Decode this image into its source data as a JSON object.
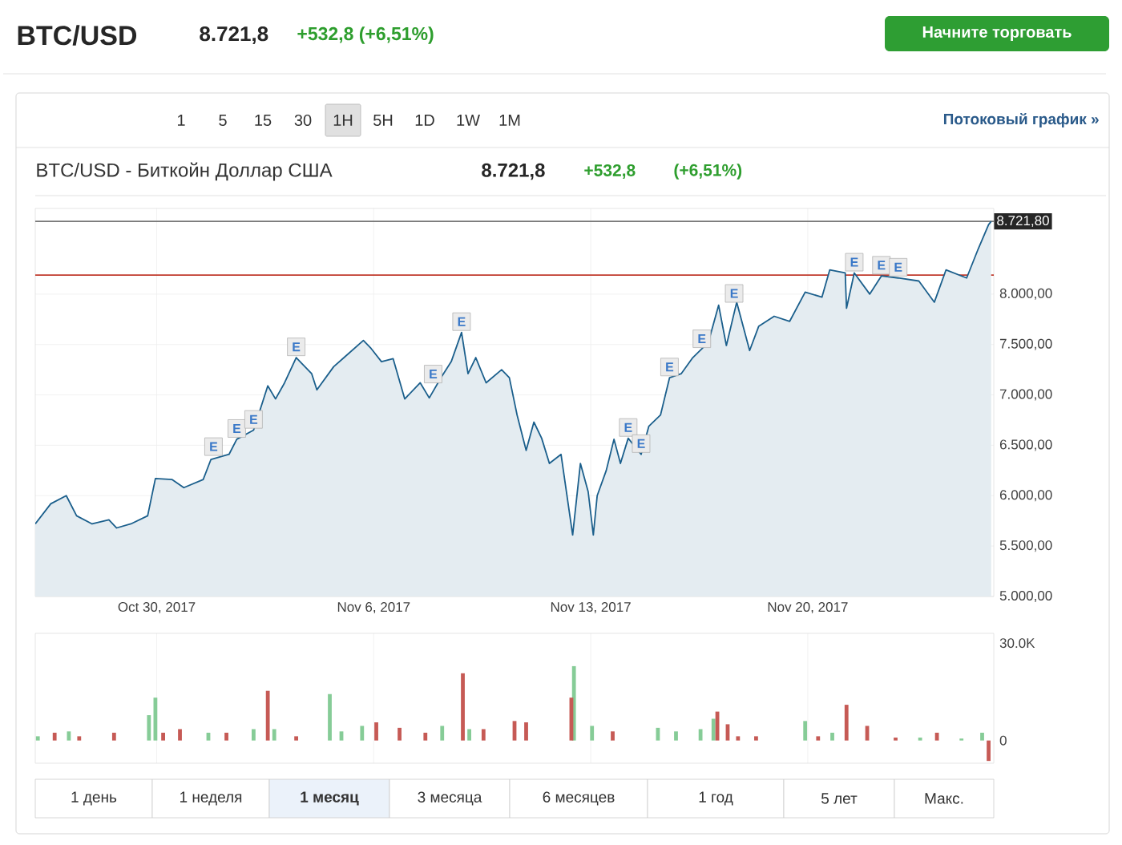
{
  "chart_data": [
    {
      "type": "area",
      "title": "BTC/USD - Биткойн Доллар США",
      "xlim": [
        "2017-10-26T02:00",
        "2017-11-26T00:00"
      ],
      "ylim": [
        5000,
        8850
      ],
      "xticks": [
        {
          "value": "2017-10-30",
          "label": "Oct 30, 2017"
        },
        {
          "value": "2017-11-06",
          "label": "Nov 6, 2017"
        },
        {
          "value": "2017-11-13",
          "label": "Nov 13, 2017"
        },
        {
          "value": "2017-11-20",
          "label": "Nov 20, 2017"
        }
      ],
      "yticks": [
        {
          "value": 5000,
          "label": "5.000,00"
        },
        {
          "value": 5500,
          "label": "5.500,00"
        },
        {
          "value": 6000,
          "label": "6.000,00"
        },
        {
          "value": 6500,
          "label": "6.500,00"
        },
        {
          "value": 7000,
          "label": "7.000,00"
        },
        {
          "value": 7500,
          "label": "7.500,00"
        },
        {
          "value": 8000,
          "label": "8.000,00"
        }
      ],
      "grid": true,
      "ref_lines": [
        {
          "axis": "y",
          "value": 8721.8,
          "label": "8.721,80",
          "color": "#777777"
        },
        {
          "axis": "y",
          "value": 8189,
          "color": "#c0392b"
        }
      ],
      "series": [
        {
          "color": "#1b5f8c",
          "x": [
            "2017-10-26T02:00",
            "2017-10-26T14:00",
            "2017-10-27T02:00",
            "2017-10-27T10:00",
            "2017-10-27T22:00",
            "2017-10-28T11:00",
            "2017-10-28T17:00",
            "2017-10-29T04:00",
            "2017-10-29T17:00",
            "2017-10-29T23:00",
            "2017-10-30T12:00",
            "2017-10-30T21:00",
            "2017-10-31T12:00",
            "2017-10-31T18:00",
            "2017-11-01T08:00",
            "2017-11-01T14:00",
            "2017-11-02T03:00",
            "2017-11-02T14:00",
            "2017-11-02T20:00",
            "2017-11-03T03:00",
            "2017-11-03T12:00",
            "2017-11-04T00:00",
            "2017-11-04T04:00",
            "2017-11-04T17:00",
            "2017-11-05T01:00",
            "2017-11-05T16:00",
            "2017-11-05T22:00",
            "2017-11-06T06:00",
            "2017-11-06T15:00",
            "2017-11-07T00:00",
            "2017-11-07T12:00",
            "2017-11-07T19:00",
            "2017-11-08T04:00",
            "2017-11-08T12:00",
            "2017-11-08T20:00",
            "2017-11-09T01:00",
            "2017-11-09T07:00",
            "2017-11-09T15:00",
            "2017-11-10T03:00",
            "2017-11-10T09:00",
            "2017-11-10T15:00",
            "2017-11-10T22:00",
            "2017-11-11T04:00",
            "2017-11-11T10:00",
            "2017-11-11T16:00",
            "2017-11-12T01:00",
            "2017-11-12T10:00",
            "2017-11-12T16:00",
            "2017-11-12T22:00",
            "2017-11-13T02:00",
            "2017-11-13T05:00",
            "2017-11-13T12:00",
            "2017-11-13T18:00",
            "2017-11-13T23:00",
            "2017-11-14T05:00",
            "2017-11-14T15:00",
            "2017-11-14T21:00",
            "2017-11-15T06:00",
            "2017-11-15T13:00",
            "2017-11-15T22:00",
            "2017-11-16T07:00",
            "2017-11-16T19:00",
            "2017-11-17T03:00",
            "2017-11-17T09:00",
            "2017-11-17T17:00",
            "2017-11-18T03:00",
            "2017-11-18T10:00",
            "2017-11-18T22:00",
            "2017-11-19T10:00",
            "2017-11-19T22:00",
            "2017-11-20T11:00",
            "2017-11-20T17:00",
            "2017-11-21T05:00",
            "2017-11-21T06:00",
            "2017-11-21T12:00",
            "2017-11-22T00:00",
            "2017-11-22T09:00",
            "2017-11-22T22:00",
            "2017-11-23T14:00",
            "2017-11-24T02:00",
            "2017-11-24T11:00",
            "2017-11-25T03:00",
            "2017-11-25T12:00",
            "2017-11-25T20:00",
            "2017-11-25T22:00"
          ],
          "values": [
            5720,
            5920,
            6000,
            5800,
            5720,
            5760,
            5680,
            5720,
            5800,
            6170,
            6160,
            6080,
            6160,
            6360,
            6410,
            6560,
            6650,
            7090,
            6960,
            7120,
            7370,
            7210,
            7050,
            7280,
            7370,
            7540,
            7460,
            7330,
            7360,
            6960,
            7120,
            6970,
            7170,
            7330,
            7620,
            7210,
            7370,
            7120,
            7250,
            7170,
            6800,
            6450,
            6730,
            6570,
            6320,
            6410,
            5610,
            6320,
            6040,
            5610,
            6000,
            6250,
            6560,
            6320,
            6570,
            6410,
            6690,
            6800,
            7170,
            7210,
            7370,
            7520,
            7890,
            7490,
            7920,
            7440,
            7680,
            7780,
            7730,
            8020,
            7970,
            8240,
            8210,
            7860,
            8210,
            8000,
            8180,
            8160,
            8130,
            7920,
            8240,
            8160,
            8450,
            8690,
            8721.8
          ]
        }
      ],
      "annotations": [
        "BTC/USD",
        "8.721,8",
        "+532,8 (+6,51%)",
        "Начните торговать",
        "1",
        "5",
        "15",
        "30",
        "1H",
        "5H",
        "1D",
        "1W",
        "1M",
        "Потоковый график »",
        "8.721,8",
        "+532,8",
        "(+6,51%)",
        "1 день",
        "1 неделя",
        "1 месяц",
        "3 месяца",
        "6 месяцев",
        "1 год",
        "5 лет",
        "Макс.",
        {
          "text": "E",
          "x": "2017-10-31T20:00",
          "y": 6380
        },
        {
          "text": "E",
          "x": "2017-11-01T14:00",
          "y": 6560
        },
        {
          "text": "E",
          "x": "2017-11-02T03:00",
          "y": 6650
        },
        {
          "text": "E",
          "x": "2017-11-03T12:00",
          "y": 7370
        },
        {
          "text": "E",
          "x": "2017-11-07T22:00",
          "y": 7100
        },
        {
          "text": "E",
          "x": "2017-11-08T20:00",
          "y": 7620
        },
        {
          "text": "E",
          "x": "2017-11-14T05:00",
          "y": 6570
        },
        {
          "text": "E",
          "x": "2017-11-14T15:00",
          "y": 6410
        },
        {
          "text": "E",
          "x": "2017-11-15T13:00",
          "y": 7170
        },
        {
          "text": "E",
          "x": "2017-11-16T14:00",
          "y": 7450
        },
        {
          "text": "E",
          "x": "2017-11-17T15:00",
          "y": 7900
        },
        {
          "text": "E",
          "x": "2017-11-21T12:00",
          "y": 8210
        },
        {
          "text": "E",
          "x": "2017-11-22T09:00",
          "y": 8180
        },
        {
          "text": "E",
          "x": "2017-11-22T22:00",
          "y": 8160
        }
      ]
    },
    {
      "type": "bar",
      "xlim": [
        "2017-10-26T02:00",
        "2017-11-26T00:00"
      ],
      "ylim": [
        -7000,
        33000
      ],
      "xticks": [
        {
          "value": "2017-10-30",
          "label": null
        },
        {
          "value": "2017-11-06",
          "label": null
        },
        {
          "value": "2017-11-13",
          "label": null
        },
        {
          "value": "2017-11-20",
          "label": null
        }
      ],
      "yticks": [
        0,
        {
          "value": 30000,
          "label": "30.0K"
        }
      ],
      "tick_labels": "y",
      "grid": "x",
      "series": [
        {
          "color": "#86cc97",
          "x": [
            "2017-10-26T04:00",
            "2017-10-27T04:00",
            "2017-10-29T18:00",
            "2017-10-29T23:00",
            "2017-10-31T16:00",
            "2017-11-02T03:00",
            "2017-11-02T19:00",
            "2017-11-04T14:00",
            "2017-11-04T23:00",
            "2017-11-05T15:00",
            "2017-11-08T05:00",
            "2017-11-09T02:00",
            "2017-11-12T11:00",
            "2017-11-13T01:00",
            "2017-11-15T04:00",
            "2017-11-15T18:00",
            "2017-11-16T13:00",
            "2017-11-16T23:00",
            "2017-11-19T22:00",
            "2017-11-20T19:00",
            "2017-11-23T15:00",
            "2017-11-24T23:00",
            "2017-11-25T15:00"
          ],
          "values": [
            1300,
            2800,
            7800,
            13200,
            2400,
            3500,
            3500,
            14300,
            2800,
            4500,
            4500,
            3500,
            22900,
            4500,
            3900,
            2800,
            3500,
            6700,
            6000,
            2400,
            900,
            600,
            2400
          ]
        },
        {
          "color": "#c65a55",
          "x": [
            "2017-10-26T17:00",
            "2017-10-27T12:00",
            "2017-10-28T15:00",
            "2017-10-30T05:00",
            "2017-10-30T18:00",
            "2017-11-01T06:00",
            "2017-11-02T14:00",
            "2017-11-03T12:00",
            "2017-11-06T02:00",
            "2017-11-06T20:00",
            "2017-11-07T16:00",
            "2017-11-08T21:00",
            "2017-11-09T13:00",
            "2017-11-10T13:00",
            "2017-11-10T22:00",
            "2017-11-12T09:00",
            "2017-11-13T17:00",
            "2017-11-17T02:00",
            "2017-11-17T10:00",
            "2017-11-17T18:00",
            "2017-11-18T08:00",
            "2017-11-20T08:00",
            "2017-11-21T06:00",
            "2017-11-21T22:00",
            "2017-11-22T20:00",
            "2017-11-24T04:00",
            "2017-11-25T20:00"
          ],
          "values": [
            2400,
            1300,
            2400,
            2400,
            3500,
            2400,
            15300,
            1300,
            5600,
            3900,
            2400,
            20700,
            3500,
            6000,
            5600,
            13200,
            2800,
            8900,
            5000,
            1300,
            1300,
            1300,
            11000,
            4500,
            900,
            2400,
            -6300
          ]
        }
      ]
    }
  ]
}
